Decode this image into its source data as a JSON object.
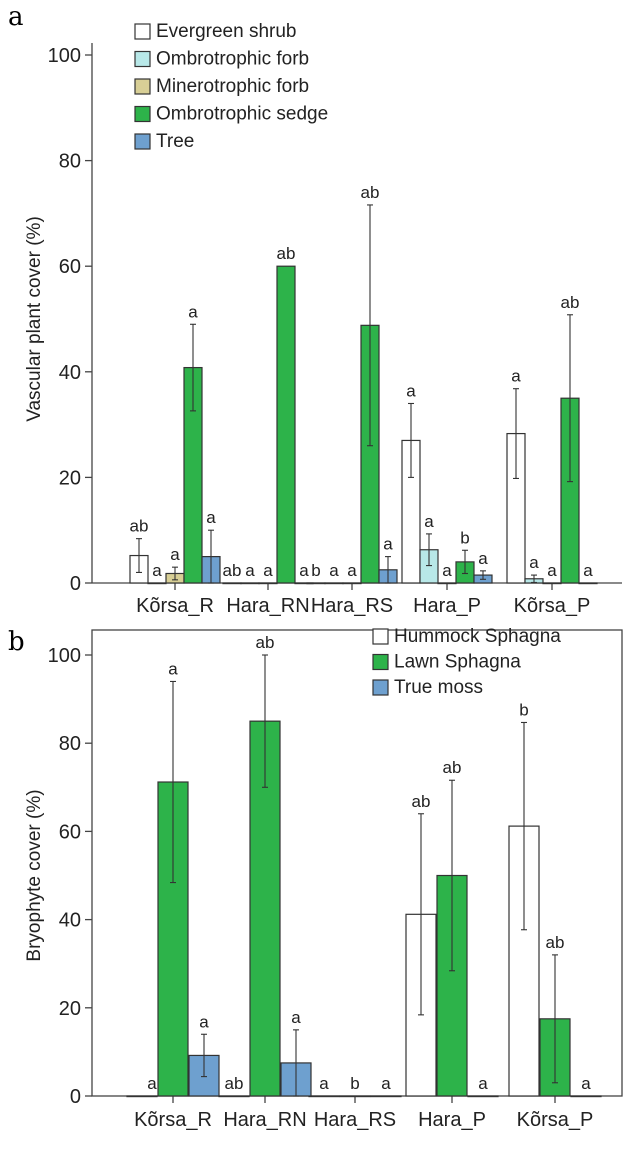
{
  "chart_data": [
    {
      "type": "bar",
      "panel": "a",
      "ylabel": "Vascular plant cover (%)",
      "ylim": [
        0,
        100
      ],
      "yticks": [
        "0",
        "20",
        "40",
        "60",
        "80",
        "100"
      ],
      "categories": [
        "Kõrsa_R",
        "Hara_RN",
        "Hara_RS",
        "Hara_P",
        "Kõrsa_P"
      ],
      "legend_placement": "top-left",
      "grid": false,
      "series": [
        {
          "name": "Evergreen shrub",
          "color": "#ffffff",
          "values": [
            5.2,
            0,
            0,
            27,
            28.3
          ],
          "err": [
            3.2,
            0,
            0,
            7,
            8.5
          ],
          "labels": [
            "ab",
            "ab",
            "b",
            "a",
            "a"
          ]
        },
        {
          "name": "Ombrotrophic forb",
          "color": "#b8e8e8",
          "values": [
            0,
            0,
            0,
            6.3,
            0.8
          ],
          "err": [
            0,
            0,
            0,
            3,
            0.7
          ],
          "labels": [
            "a",
            "a",
            "a",
            "a",
            "a"
          ]
        },
        {
          "name": "Minerotrophic forb",
          "color": "#d8cf96",
          "values": [
            1.8,
            0,
            0,
            0,
            0
          ],
          "err": [
            1.2,
            0,
            0,
            0,
            0
          ],
          "labels": [
            "a",
            "a",
            "a",
            "a",
            "a"
          ]
        },
        {
          "name": "Ombrotrophic sedge",
          "color": "#2db34a",
          "values": [
            40.8,
            60,
            48.8,
            4,
            35
          ],
          "err": [
            8.2,
            0,
            22.8,
            2.2,
            15.8
          ],
          "labels": [
            "a",
            "ab",
            "ab",
            "b",
            "ab"
          ]
        },
        {
          "name": "Tree",
          "color": "#6ea0cf",
          "values": [
            5,
            0,
            2.5,
            1.5,
            0
          ],
          "err": [
            5,
            0,
            2.5,
            0.8,
            0
          ],
          "labels": [
            "a",
            "a",
            "a",
            "a",
            "a"
          ]
        }
      ]
    },
    {
      "type": "bar",
      "panel": "b",
      "ylabel": "Bryophyte cover (%)",
      "ylim": [
        0,
        100
      ],
      "yticks": [
        "0",
        "20",
        "40",
        "60",
        "80",
        "100"
      ],
      "categories": [
        "Kõrsa_R",
        "Hara_RN",
        "Hara_RS",
        "Hara_P",
        "Kõrsa_P"
      ],
      "legend_placement": "top-right",
      "grid": false,
      "series": [
        {
          "name": "Hummock Sphagna",
          "color": "#ffffff",
          "values": [
            0,
            0,
            0,
            41.2,
            61.2
          ],
          "err": [
            0,
            0,
            0,
            22.8,
            23.5
          ],
          "labels": [
            "",
            "ab",
            "a",
            "ab",
            "b"
          ]
        },
        {
          "name": "Lawn Sphagna",
          "color": "#2db34a",
          "values": [
            71.2,
            85,
            0,
            50,
            17.5
          ],
          "err": [
            22.8,
            15,
            0,
            21.6,
            14.5
          ],
          "labels": [
            "a",
            "ab",
            "b",
            "ab",
            "ab"
          ]
        },
        {
          "name": "True moss",
          "color": "#6ea0cf",
          "values": [
            9.2,
            7.5,
            0,
            0,
            0
          ],
          "err": [
            4.8,
            7.5,
            0,
            0,
            0
          ],
          "labels": [
            "a",
            "a",
            "a",
            "a",
            "a"
          ]
        }
      ],
      "extra_labels": [
        "a"
      ]
    }
  ]
}
